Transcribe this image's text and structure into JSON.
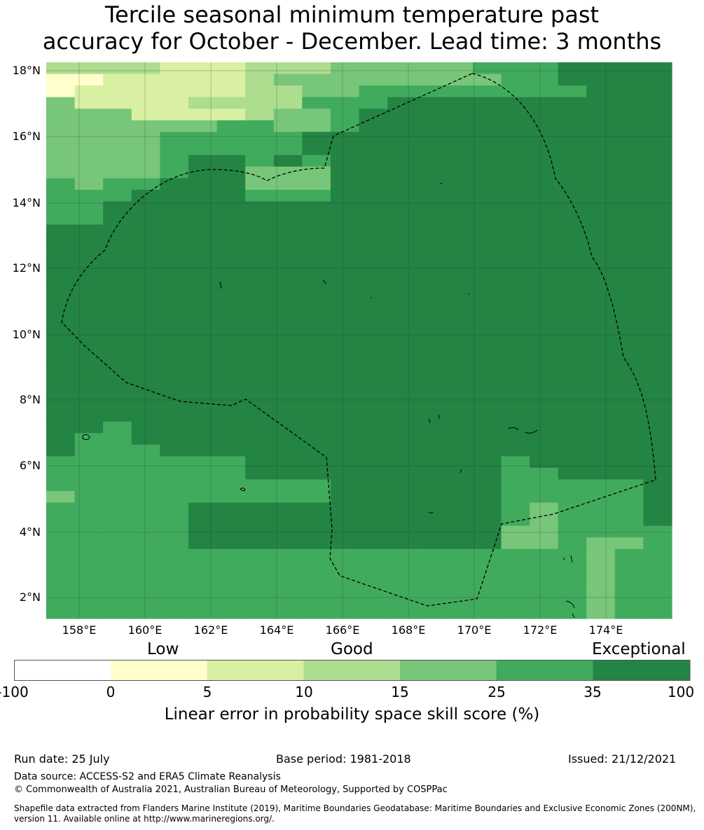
{
  "title": {
    "line1": "Tercile seasonal minimum temperature past",
    "line2": "accuracy for October - December. Lead time: 3 months"
  },
  "map": {
    "lat_labels": [
      "18°N",
      "16°N",
      "14°N",
      "12°N",
      "10°N",
      "8°N",
      "6°N",
      "4°N",
      "2°N"
    ],
    "lon_labels": [
      "158°E",
      "160°E",
      "162°E",
      "164°E",
      "166°E",
      "168°E",
      "170°E",
      "172°E",
      "174°E"
    ],
    "colors": {
      "bin0": "#ffffff",
      "bin1": "#ffffcc",
      "bin2": "#d9f0a3",
      "bin3": "#addd8e",
      "bin4": "#78c679",
      "bin5": "#41ab5d",
      "bin6": "#238443",
      "eez_line": "#000000",
      "grid": "#333333"
    },
    "grid_rows": [
      "3333222333444445556666",
      "1122222344444444556666",
      "1222222334455555555666",
      "4222233335556666666666",
      "4442222344566666666666",
      "4444445544566666666666",
      "4444555556666666666666",
      "4444555556666666666666",
      "4444566565666666666666",
      "4444566444666666666666",
      "5455666444666666666666",
      "5556666555666666666666",
      "5566666666666666666666",
      "5566666666666666666666",
      "6666666666666666666666",
      "6666666666666666666666",
      "6666666666666666666666",
      "6666666666666666666666",
      "6666666666666666666666",
      "6666666666666666666666",
      "6666666666666666666666",
      "6666666666666666666666",
      "6666666666666666666666",
      "6666666666666666666666",
      "6666666666666666666666",
      "6666666666666666666666",
      "6666666666666666666666",
      "6666666666666666666666",
      "6666666666666666666666",
      "6666666666666666666666",
      "6666666666666666666666",
      "6656666666666666666666",
      "6556666666666666666666",
      "6555666666666666666666",
      "5555555666666666566666",
      "5555555666666666556666",
      "5555555555666666555556",
      "4555555555666666555556",
      "5555566666666666545556",
      "5555566666666666545556",
      "5555566666666666445555",
      "5555566666666666445445",
      "5555555555555555555455",
      "5555555555555555555455",
      "5555555555555555555455",
      "5555555555555555555455",
      "5555555555555555555455",
      "5555555555555555555455"
    ]
  },
  "colorbar": {
    "categories": [
      "Low",
      "Good",
      "Exceptional"
    ],
    "ticks": [
      "-100",
      "0",
      "5",
      "10",
      "15",
      "25",
      "35",
      "100"
    ],
    "title": "Linear error in probability space skill score (%)"
  },
  "footer": {
    "run_date": "Run date: 25 July",
    "base_period": "Base period: 1981-2018",
    "issued": "Issued: 21/12/2021",
    "data_source": "Data source: ACCESS-S2 and ERA5 Climate Reanalysis",
    "copyright": "© Commonwealth of Australia 2021, Australian Bureau of Meteorology, Supported by COSPPac",
    "shapefile_line1": "Shapefile data extracted from Flanders Marine Institute (2019), Maritime Boundaries Geodatabase: Maritime Boundaries and Exclusive Economic Zones (200NM),",
    "shapefile_line2": "version 11. Available online at http://www.marineregions.org/."
  }
}
